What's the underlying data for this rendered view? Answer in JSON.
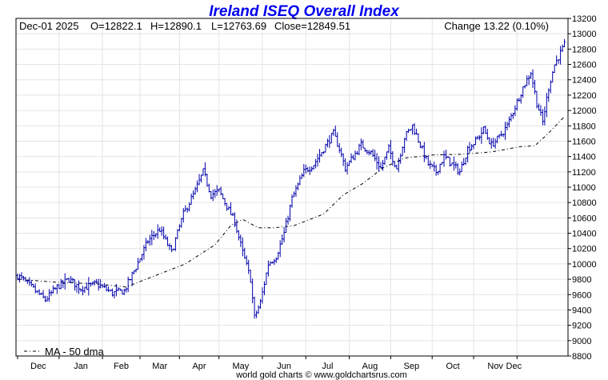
{
  "chart_data": {
    "type": "ohlc",
    "title": "Ireland ISEQ Overall Index",
    "info": {
      "date": "Dec-01  2025",
      "open": "O=12822.1",
      "high": "H=12890.1",
      "low": "L=12763.69",
      "close": "Close=12849.51",
      "change": "Change 13.22 (0.10%)"
    },
    "y_axis": {
      "min": 8800,
      "max": 13200,
      "step": 200,
      "ticks": [
        "8800",
        "9000",
        "9200",
        "9400",
        "9600",
        "9800",
        "10000",
        "10200",
        "10400",
        "10600",
        "10800",
        "11000",
        "11200",
        "11400",
        "11600",
        "11800",
        "12000",
        "12200",
        "12400",
        "12600",
        "12800",
        "13000",
        "13200"
      ]
    },
    "x_axis": {
      "months": [
        "Dec",
        "Jan",
        "Feb",
        "Mar",
        "Apr",
        "May",
        "Jun",
        "Jul",
        "Aug",
        "Sep",
        "Oct",
        "Nov",
        "Dec"
      ]
    },
    "series": [
      {
        "name": "Ireland ISEQ Overall Index",
        "style": "ohlc-bars",
        "color": "#0000aa",
        "anchors": [
          [
            0,
            9850
          ],
          [
            6,
            9720
          ],
          [
            14,
            9530
          ],
          [
            20,
            9700
          ],
          [
            26,
            9800
          ],
          [
            32,
            9680
          ],
          [
            40,
            9740
          ],
          [
            48,
            9620
          ],
          [
            54,
            9650
          ],
          [
            60,
            9960
          ],
          [
            66,
            10300
          ],
          [
            72,
            10450
          ],
          [
            78,
            10150
          ],
          [
            84,
            10650
          ],
          [
            90,
            10950
          ],
          [
            94,
            11200
          ],
          [
            98,
            10900
          ],
          [
            102,
            10950
          ],
          [
            106,
            10750
          ],
          [
            110,
            10550
          ],
          [
            114,
            10150
          ],
          [
            118,
            9800
          ],
          [
            120,
            9300
          ],
          [
            123,
            9500
          ],
          [
            127,
            10000
          ],
          [
            131,
            10100
          ],
          [
            135,
            10400
          ],
          [
            139,
            10850
          ],
          [
            145,
            11200
          ],
          [
            150,
            11300
          ],
          [
            155,
            11500
          ],
          [
            160,
            11700
          ],
          [
            163,
            11500
          ],
          [
            166,
            11250
          ],
          [
            170,
            11400
          ],
          [
            174,
            11550
          ],
          [
            179,
            11450
          ],
          [
            184,
            11250
          ],
          [
            188,
            11500
          ],
          [
            192,
            11250
          ],
          [
            196,
            11650
          ],
          [
            200,
            11800
          ],
          [
            204,
            11550
          ],
          [
            208,
            11300
          ],
          [
            212,
            11200
          ],
          [
            216,
            11400
          ],
          [
            220,
            11300
          ],
          [
            224,
            11200
          ],
          [
            228,
            11500
          ],
          [
            232,
            11600
          ],
          [
            236,
            11750
          ],
          [
            240,
            11550
          ],
          [
            244,
            11650
          ],
          [
            248,
            11800
          ],
          [
            252,
            12050
          ],
          [
            256,
            12300
          ],
          [
            260,
            12500
          ],
          [
            263,
            12100
          ],
          [
            266,
            11850
          ],
          [
            269,
            12300
          ],
          [
            272,
            12600
          ],
          [
            275,
            12750
          ],
          [
            277,
            12850
          ]
        ]
      },
      {
        "name": "MA - 50 dma",
        "style": "dash-dot",
        "color": "#000000",
        "points": [
          [
            0,
            9800
          ],
          [
            20,
            9760
          ],
          [
            40,
            9740
          ],
          [
            55,
            9700
          ],
          [
            70,
            9850
          ],
          [
            85,
            10000
          ],
          [
            100,
            10250
          ],
          [
            108,
            10500
          ],
          [
            114,
            10580
          ],
          [
            122,
            10470
          ],
          [
            130,
            10470
          ],
          [
            140,
            10500
          ],
          [
            155,
            10650
          ],
          [
            165,
            10900
          ],
          [
            175,
            11050
          ],
          [
            185,
            11250
          ],
          [
            196,
            11380
          ],
          [
            210,
            11420
          ],
          [
            225,
            11430
          ],
          [
            240,
            11460
          ],
          [
            255,
            11530
          ],
          [
            262,
            11540
          ],
          [
            268,
            11680
          ],
          [
            277,
            11920
          ]
        ]
      }
    ],
    "legend": {
      "label": "MA - 50 dma",
      "position": "bottom-left"
    },
    "footer": "world gold charts © www.goldchartsrus.com",
    "grid": true
  }
}
